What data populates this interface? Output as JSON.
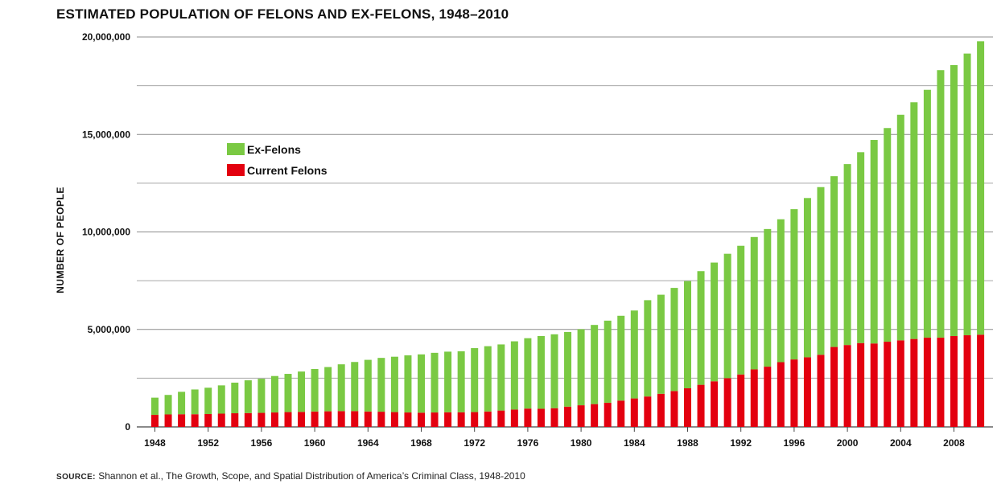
{
  "title": "ESTIMATED POPULATION OF FELONS AND EX-FELONS, 1948–2010",
  "source": {
    "label": "source:",
    "text": " Shannon et al., The Growth, Scope, and Spatial Distribution of America’s Criminal Class, 1948-2010"
  },
  "chart_data": {
    "type": "bar",
    "stacked": true,
    "title": "ESTIMATED POPULATION OF FELONS AND EX-FELONS, 1948–2010",
    "xlabel": "",
    "ylabel": "NUMBER OF PEOPLE",
    "ylim": [
      0,
      20000000
    ],
    "yticks": [
      "0",
      "5,000,000",
      "10,000,000",
      "15,000,000",
      "20,000,000"
    ],
    "ytick_values": [
      0,
      5000000,
      10000000,
      15000000,
      20000000
    ],
    "xticks": [
      "1948",
      "1952",
      "1956",
      "1960",
      "1964",
      "1968",
      "1972",
      "1976",
      "1980",
      "1984",
      "1988",
      "1992",
      "1996",
      "2000",
      "2004",
      "2008"
    ],
    "grid": true,
    "legend_position": "upper-left",
    "categories": [
      1948,
      1949,
      1950,
      1951,
      1952,
      1953,
      1954,
      1955,
      1956,
      1957,
      1958,
      1959,
      1960,
      1961,
      1962,
      1963,
      1964,
      1965,
      1966,
      1967,
      1968,
      1969,
      1970,
      1971,
      1972,
      1973,
      1974,
      1975,
      1976,
      1977,
      1978,
      1979,
      1980,
      1981,
      1982,
      1983,
      1984,
      1985,
      1986,
      1987,
      1988,
      1989,
      1990,
      1991,
      1992,
      1993,
      1994,
      1995,
      1996,
      1997,
      1998,
      1999,
      2000,
      2001,
      2002,
      2003,
      2004,
      2005,
      2006,
      2007,
      2008,
      2009,
      2010
    ],
    "series": [
      {
        "name": "Current Felons",
        "color": "#e3000f",
        "values": [
          620000,
          640000,
          650000,
          650000,
          660000,
          680000,
          700000,
          710000,
          720000,
          740000,
          760000,
          770000,
          790000,
          800000,
          810000,
          810000,
          790000,
          780000,
          760000,
          740000,
          730000,
          740000,
          750000,
          750000,
          760000,
          790000,
          840000,
          890000,
          940000,
          930000,
          960000,
          1040000,
          1110000,
          1170000,
          1240000,
          1350000,
          1460000,
          1560000,
          1700000,
          1840000,
          1980000,
          2160000,
          2340000,
          2500000,
          2690000,
          2950000,
          3090000,
          3320000,
          3460000,
          3570000,
          3700000,
          4100000,
          4200000,
          4300000,
          4280000,
          4370000,
          4440000,
          4510000,
          4580000,
          4580000,
          4660000,
          4700000,
          4730000
        ]
      },
      {
        "name": "Ex-Felons",
        "color": "#7ac943",
        "values": [
          880000,
          1000000,
          1150000,
          1270000,
          1350000,
          1450000,
          1570000,
          1680000,
          1750000,
          1870000,
          1960000,
          2070000,
          2180000,
          2270000,
          2400000,
          2520000,
          2650000,
          2760000,
          2840000,
          2930000,
          2990000,
          3060000,
          3110000,
          3130000,
          3280000,
          3350000,
          3390000,
          3500000,
          3610000,
          3730000,
          3790000,
          3830000,
          3900000,
          4060000,
          4210000,
          4350000,
          4510000,
          4940000,
          5080000,
          5290000,
          5500000,
          5830000,
          6090000,
          6380000,
          6600000,
          6790000,
          7060000,
          7330000,
          7710000,
          8170000,
          8600000,
          8760000,
          9280000,
          9790000,
          10440000,
          10960000,
          11570000,
          12140000,
          12710000,
          13720000,
          13900000,
          14450000,
          15050000
        ]
      }
    ]
  }
}
